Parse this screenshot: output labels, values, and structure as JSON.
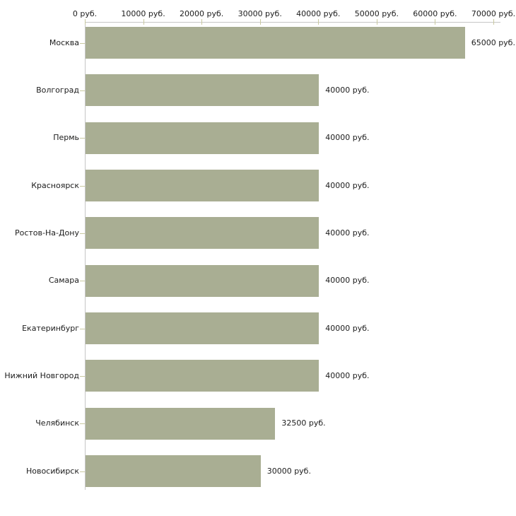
{
  "chart_data": {
    "type": "bar",
    "orientation": "horizontal",
    "title": "",
    "categories": [
      "Москва",
      "Волгоград",
      "Пермь",
      "Красноярск",
      "Ростов-На-Дону",
      "Самара",
      "Екатеринбург",
      "Нижний Новгород",
      "Челябинск",
      "Новосибирск"
    ],
    "values": [
      65000,
      40000,
      40000,
      40000,
      40000,
      40000,
      40000,
      40000,
      32500,
      30000
    ],
    "value_labels": [
      "65000 руб.",
      "40000 руб.",
      "40000 руб.",
      "40000 руб.",
      "40000 руб.",
      "40000 руб.",
      "40000 руб.",
      "40000 руб.",
      "32500 руб.",
      "30000 руб."
    ],
    "x_axis": {
      "position": "top",
      "range": [
        0,
        70000
      ],
      "tick_values": [
        0,
        10000,
        20000,
        30000,
        40000,
        50000,
        60000,
        70000
      ],
      "tick_labels": [
        "0 руб.",
        "10000 руб.",
        "20000 руб.",
        "30000 руб.",
        "40000 руб.",
        "50000 руб.",
        "60000 руб.",
        "70000 руб."
      ]
    },
    "ylabel": "",
    "xlabel": "",
    "grid": false,
    "legend": false,
    "colors": {
      "bar": "#a9ae93",
      "axis_line": "#c6c6c6",
      "tick": "#c9c9a0",
      "text": "#1c1c1c",
      "background": "#ffffff"
    }
  }
}
